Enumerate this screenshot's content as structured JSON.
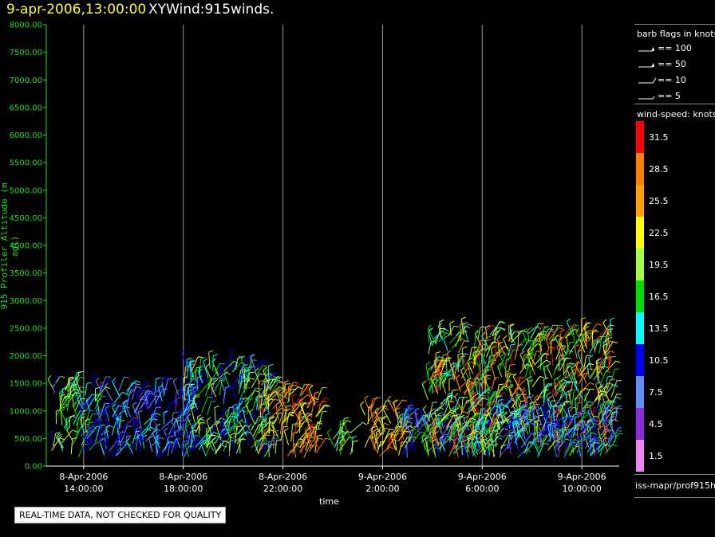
{
  "header": {
    "time": "9-apr-2006,13:00:00",
    "plot_title": "XYWind:915winds."
  },
  "notice": "REAL-TIME DATA, NOT CHECKED FOR QUALITY",
  "legend": {
    "barb_title": "barb flags in knots",
    "barbs": [
      {
        "label": "== 100",
        "kind": "flag"
      },
      {
        "label": "== 50",
        "kind": "flag"
      },
      {
        "label": "== 10",
        "kind": "full"
      },
      {
        "label": "== 5",
        "kind": "half"
      }
    ],
    "speed_title": "wind-speed: knots",
    "speed_bins": [
      {
        "label": "31.5",
        "color": "#ff0000"
      },
      {
        "label": "28.5",
        "color": "#ff8000"
      },
      {
        "label": "25.5",
        "color": "#ffa000"
      },
      {
        "label": "22.5",
        "color": "#ffff00"
      },
      {
        "label": "19.5",
        "color": "#a0ff40"
      },
      {
        "label": "16.5",
        "color": "#00e000"
      },
      {
        "label": "13.5",
        "color": "#00ffff"
      },
      {
        "label": "10.5",
        "color": "#0000ff"
      },
      {
        "label": "7.5",
        "color": "#6090ff"
      },
      {
        "label": "4.5",
        "color": "#8a2be2"
      },
      {
        "label": "1.5",
        "color": "#ee82ee"
      }
    ],
    "footer_id": "iss-mapr/prof915h"
  },
  "chart_data": {
    "type": "scatter",
    "ylabel": "915 Profiler Altitude (m agl)",
    "xlabel": "time",
    "ylim": [
      0,
      8000
    ],
    "yticks": [
      "0.00",
      "500.00",
      "1000.00",
      "1500.00",
      "2000.00",
      "2500.00",
      "3000.00",
      "3500.00",
      "4000.00",
      "4500.00",
      "5000.00",
      "5500.00",
      "6000.00",
      "6500.00",
      "7000.00",
      "7500.00",
      "8000.00"
    ],
    "xlim_hours": [
      12.5,
      35.5
    ],
    "xticks": [
      {
        "hour": 14,
        "date": "8-Apr-2006",
        "time": "14:00:00"
      },
      {
        "hour": 18,
        "date": "8-Apr-2006",
        "time": "18:00:00"
      },
      {
        "hour": 22,
        "date": "8-Apr-2006",
        "time": "22:00:00"
      },
      {
        "hour": 26,
        "date": "9-Apr-2006",
        "time": "2:00:00"
      },
      {
        "hour": 30,
        "date": "9-Apr-2006",
        "time": "6:00:00"
      },
      {
        "hour": 34,
        "date": "9-Apr-2006",
        "time": "10:00:00"
      }
    ],
    "series_note": "wind barbs colored by speed",
    "clusters": [
      {
        "h0": 12.7,
        "h1": 14.5,
        "ytop": 1450,
        "speed": [
          10,
          22
        ]
      },
      {
        "h0": 14.6,
        "h1": 18.5,
        "ytop": 1400,
        "speed": [
          5,
          14
        ]
      },
      {
        "h0": 18.0,
        "h1": 21.5,
        "ytop": 1800,
        "speed": [
          8,
          22
        ]
      },
      {
        "h0": 21.0,
        "h1": 23.5,
        "ytop": 1300,
        "speed": [
          18,
          31
        ]
      },
      {
        "h0": 25.2,
        "h1": 26.9,
        "ytop": 1050,
        "speed": [
          20,
          31
        ]
      },
      {
        "h0": 24.0,
        "h1": 24.8,
        "ytop": 650,
        "speed": [
          14,
          22
        ]
      },
      {
        "h0": 26.6,
        "h1": 30.5,
        "ytop": 900,
        "speed": [
          5,
          18
        ]
      },
      {
        "h0": 27.8,
        "h1": 35.2,
        "ytop": 2400,
        "speed": [
          12,
          31
        ]
      },
      {
        "h0": 30.5,
        "h1": 35.4,
        "ytop": 1000,
        "speed": [
          4,
          16
        ]
      }
    ]
  }
}
